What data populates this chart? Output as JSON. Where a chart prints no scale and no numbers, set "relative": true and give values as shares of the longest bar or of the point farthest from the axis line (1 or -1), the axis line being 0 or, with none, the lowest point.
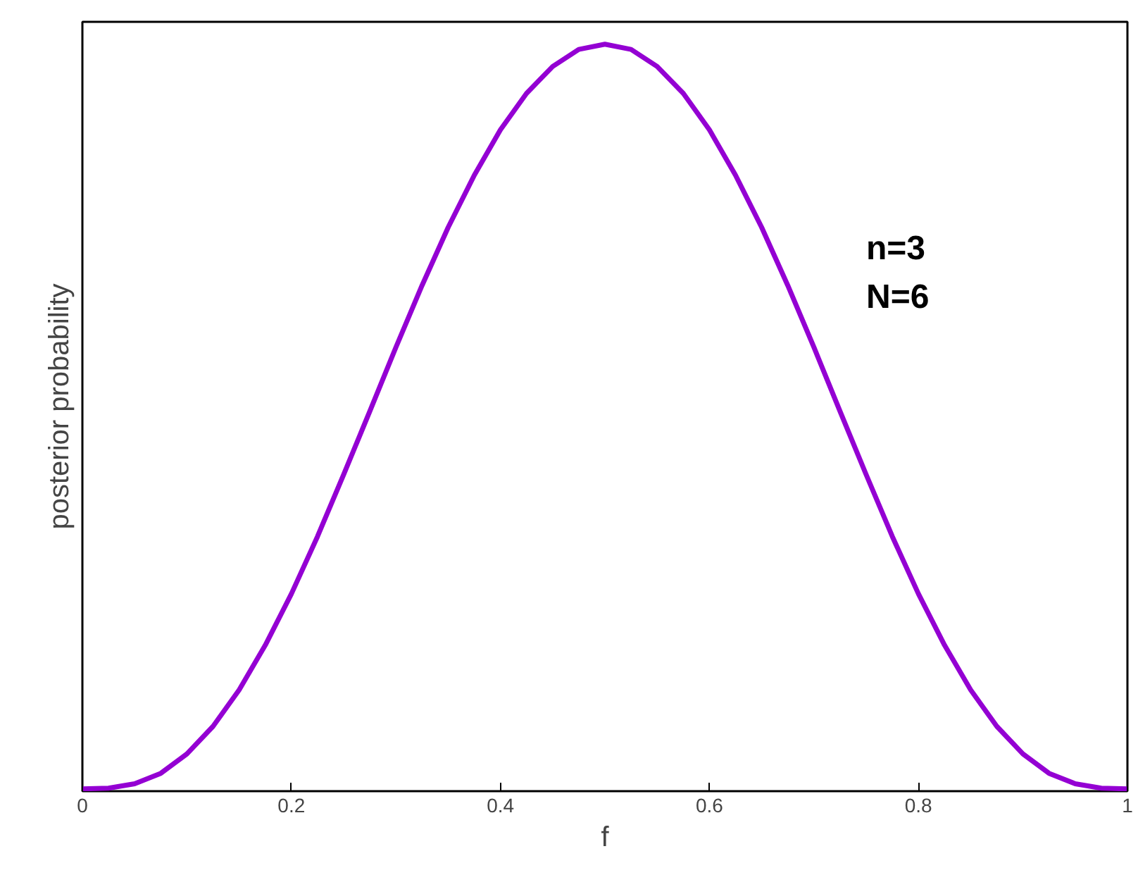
{
  "chart_data": {
    "type": "line",
    "xlabel": "f",
    "ylabel": "posterior probability",
    "relative": true,
    "grid": false,
    "marker": "none",
    "line_style": "solid",
    "annotations": [
      "n=3",
      "N=6"
    ],
    "xlim": [
      0,
      1
    ],
    "xticks": [
      0,
      0.2,
      0.4,
      0.6,
      0.8,
      1
    ],
    "x": [
      0,
      0.025,
      0.05,
      0.075,
      0.1,
      0.125,
      0.15,
      0.175,
      0.2,
      0.225,
      0.25,
      0.275,
      0.3,
      0.325,
      0.35,
      0.375,
      0.4,
      0.425,
      0.45,
      0.475,
      0.5,
      0.525,
      0.55,
      0.575,
      0.6,
      0.625,
      0.65,
      0.675,
      0.7,
      0.725,
      0.75,
      0.775,
      0.8,
      0.825,
      0.85,
      0.875,
      0.9,
      0.925,
      0.95,
      0.975,
      1
    ],
    "series": [
      {
        "color": "#9400d3",
        "values": [
          0,
          0.001,
          0.007,
          0.021,
          0.047,
          0.084,
          0.133,
          0.193,
          0.262,
          0.339,
          0.422,
          0.507,
          0.593,
          0.676,
          0.754,
          0.824,
          0.885,
          0.934,
          0.97,
          0.993,
          1,
          0.993,
          0.97,
          0.934,
          0.885,
          0.824,
          0.754,
          0.676,
          0.593,
          0.507,
          0.422,
          0.339,
          0.262,
          0.193,
          0.133,
          0.084,
          0.047,
          0.021,
          0.007,
          0.001,
          0
        ]
      }
    ]
  }
}
